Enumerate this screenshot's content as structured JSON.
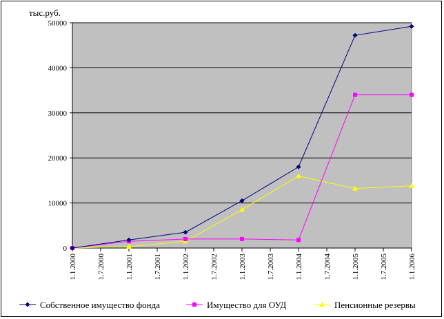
{
  "chart_data": {
    "type": "line",
    "title": "",
    "xlabel": "",
    "ylabel": "тыс.руб.",
    "ylim": [
      0,
      50000
    ],
    "y_ticks": [
      "0",
      "10000",
      "20000",
      "30000",
      "40000",
      "50000"
    ],
    "x_ticks": [
      "1.1.2000",
      "1.7.2000",
      "1.1.2001",
      "1.7.2001",
      "1.1.2002",
      "1.7.2002",
      "1.1.2003",
      "1.7.2003",
      "1.1.2004",
      "1.7.2004",
      "1.1.2005",
      "1.7.2005",
      "1.1.2006"
    ],
    "x": [
      "1.1.2000",
      "1.1.2001",
      "1.1.2002",
      "1.1.2003",
      "1.1.2004",
      "1.1.2005",
      "1.1.2006"
    ],
    "grid": true,
    "legend_position": "bottom",
    "plot_background": "#c0c0c0",
    "series": [
      {
        "name": "Собственное имущество фонда",
        "color": "#000080",
        "marker": "diamond",
        "values": [
          0,
          1800,
          3500,
          10500,
          18000,
          47200,
          49200
        ]
      },
      {
        "name": "Имущество для ОУД",
        "color": "#ff00ff",
        "marker": "square",
        "values": [
          0,
          1500,
          2000,
          2000,
          1800,
          34000,
          34000
        ]
      },
      {
        "name": "Пенсионные резервы",
        "color": "#ffff00",
        "marker": "triangle",
        "values": [
          0,
          300,
          1500,
          8500,
          16000,
          13200,
          13800
        ]
      }
    ]
  }
}
